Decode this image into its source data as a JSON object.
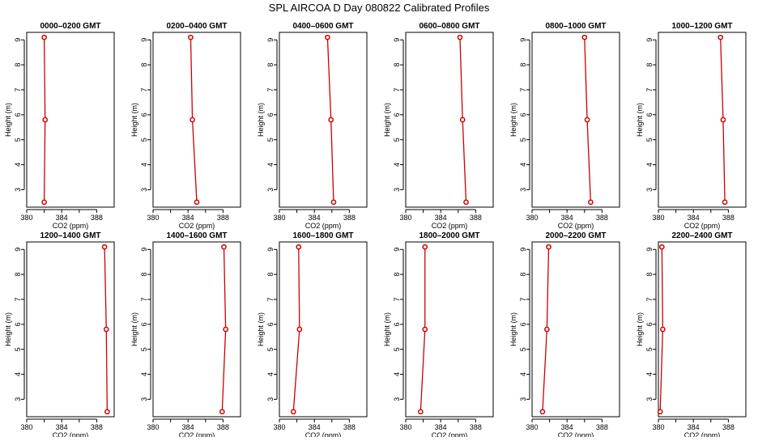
{
  "title": "SPL AIRCOA D  Day 080822  Calibrated Profiles",
  "chart_data": {
    "type": "line",
    "title": "SPL AIRCOA D  Day 080822  Calibrated Profiles",
    "xlabel": "CO2 (ppm)",
    "ylabel": "Height (m)",
    "xlim": [
      380,
      390
    ],
    "ylim": [
      2.3,
      9.3
    ],
    "x_ticks": [
      "380",
      "384",
      "388"
    ],
    "x_tick_values": [
      380,
      382,
      384,
      386,
      388
    ],
    "y_ticks": [
      "3",
      "4",
      "5",
      "6",
      "7",
      "8",
      "9"
    ],
    "y_tick_values": [
      3,
      4,
      5,
      6,
      7,
      8,
      9
    ],
    "heights": [
      2.5,
      5.8,
      9.1
    ],
    "marker_color": "#cc0000",
    "line_color": "#cc0000",
    "panels": [
      {
        "title": "0000–0200 GMT",
        "co2": [
          382.0,
          382.1,
          382.0
        ]
      },
      {
        "title": "0200–0400 GMT",
        "co2": [
          385.0,
          384.5,
          384.3
        ]
      },
      {
        "title": "0400–0600 GMT",
        "co2": [
          386.2,
          385.9,
          385.5
        ]
      },
      {
        "title": "0600–0800 GMT",
        "co2": [
          386.9,
          386.5,
          386.2
        ]
      },
      {
        "title": "0800–1000 GMT",
        "co2": [
          386.7,
          386.3,
          386.0
        ]
      },
      {
        "title": "1000–1200 GMT",
        "co2": [
          387.6,
          387.4,
          387.1
        ]
      },
      {
        "title": "1200–1400 GMT",
        "co2": [
          389.2,
          389.1,
          388.9
        ]
      },
      {
        "title": "1400–1600 GMT",
        "co2": [
          387.9,
          388.3,
          388.1
        ]
      },
      {
        "title": "1600–1800 GMT",
        "co2": [
          381.6,
          382.3,
          382.2
        ]
      },
      {
        "title": "1800–2000 GMT",
        "co2": [
          381.7,
          382.2,
          382.2
        ]
      },
      {
        "title": "2000–2200 GMT",
        "co2": [
          381.2,
          381.7,
          381.9
        ]
      },
      {
        "title": "2200–2400 GMT",
        "co2": [
          380.2,
          380.5,
          380.4
        ]
      }
    ]
  }
}
